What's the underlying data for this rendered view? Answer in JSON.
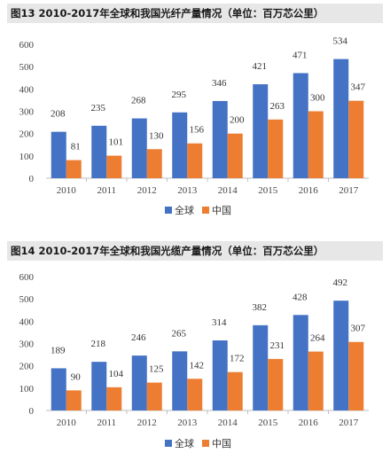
{
  "colors": {
    "global": "#4472c4",
    "china": "#ed7d31",
    "title_bg": "#e7e7e7"
  },
  "chart_data": [
    {
      "type": "bar",
      "title": "图13 2010-2017年全球和我国光纤产量情况（单位：百万芯公里）",
      "categories": [
        "2010",
        "2011",
        "2012",
        "2013",
        "2014",
        "2015",
        "2016",
        "2017"
      ],
      "series": [
        {
          "name": "全球",
          "values": [
            208,
            235,
            268,
            295,
            346,
            421,
            471,
            534
          ]
        },
        {
          "name": "中国",
          "values": [
            81,
            101,
            130,
            156,
            200,
            263,
            300,
            347
          ]
        }
      ],
      "yticks": [
        "0",
        "100",
        "200",
        "300",
        "400",
        "500",
        "600"
      ],
      "ylim": [
        0,
        600
      ],
      "grid": false,
      "legend": "bottom-center"
    },
    {
      "type": "bar",
      "title": "图14  2010-2017年全球和我国光缆产量情况（单位：百万芯公里）",
      "categories": [
        "2010",
        "2011",
        "2012",
        "2013",
        "2014",
        "2015",
        "2016",
        "2017"
      ],
      "series": [
        {
          "name": "全球",
          "values": [
            189,
            218,
            246,
            265,
            314,
            382,
            428,
            492
          ]
        },
        {
          "name": "中国",
          "values": [
            90,
            104,
            125,
            142,
            172,
            231,
            264,
            307
          ]
        }
      ],
      "yticks": [
        "0",
        "100",
        "200",
        "300",
        "400",
        "500",
        "600"
      ],
      "ylim": [
        0,
        600
      ],
      "grid": false,
      "legend": "bottom-center"
    }
  ]
}
